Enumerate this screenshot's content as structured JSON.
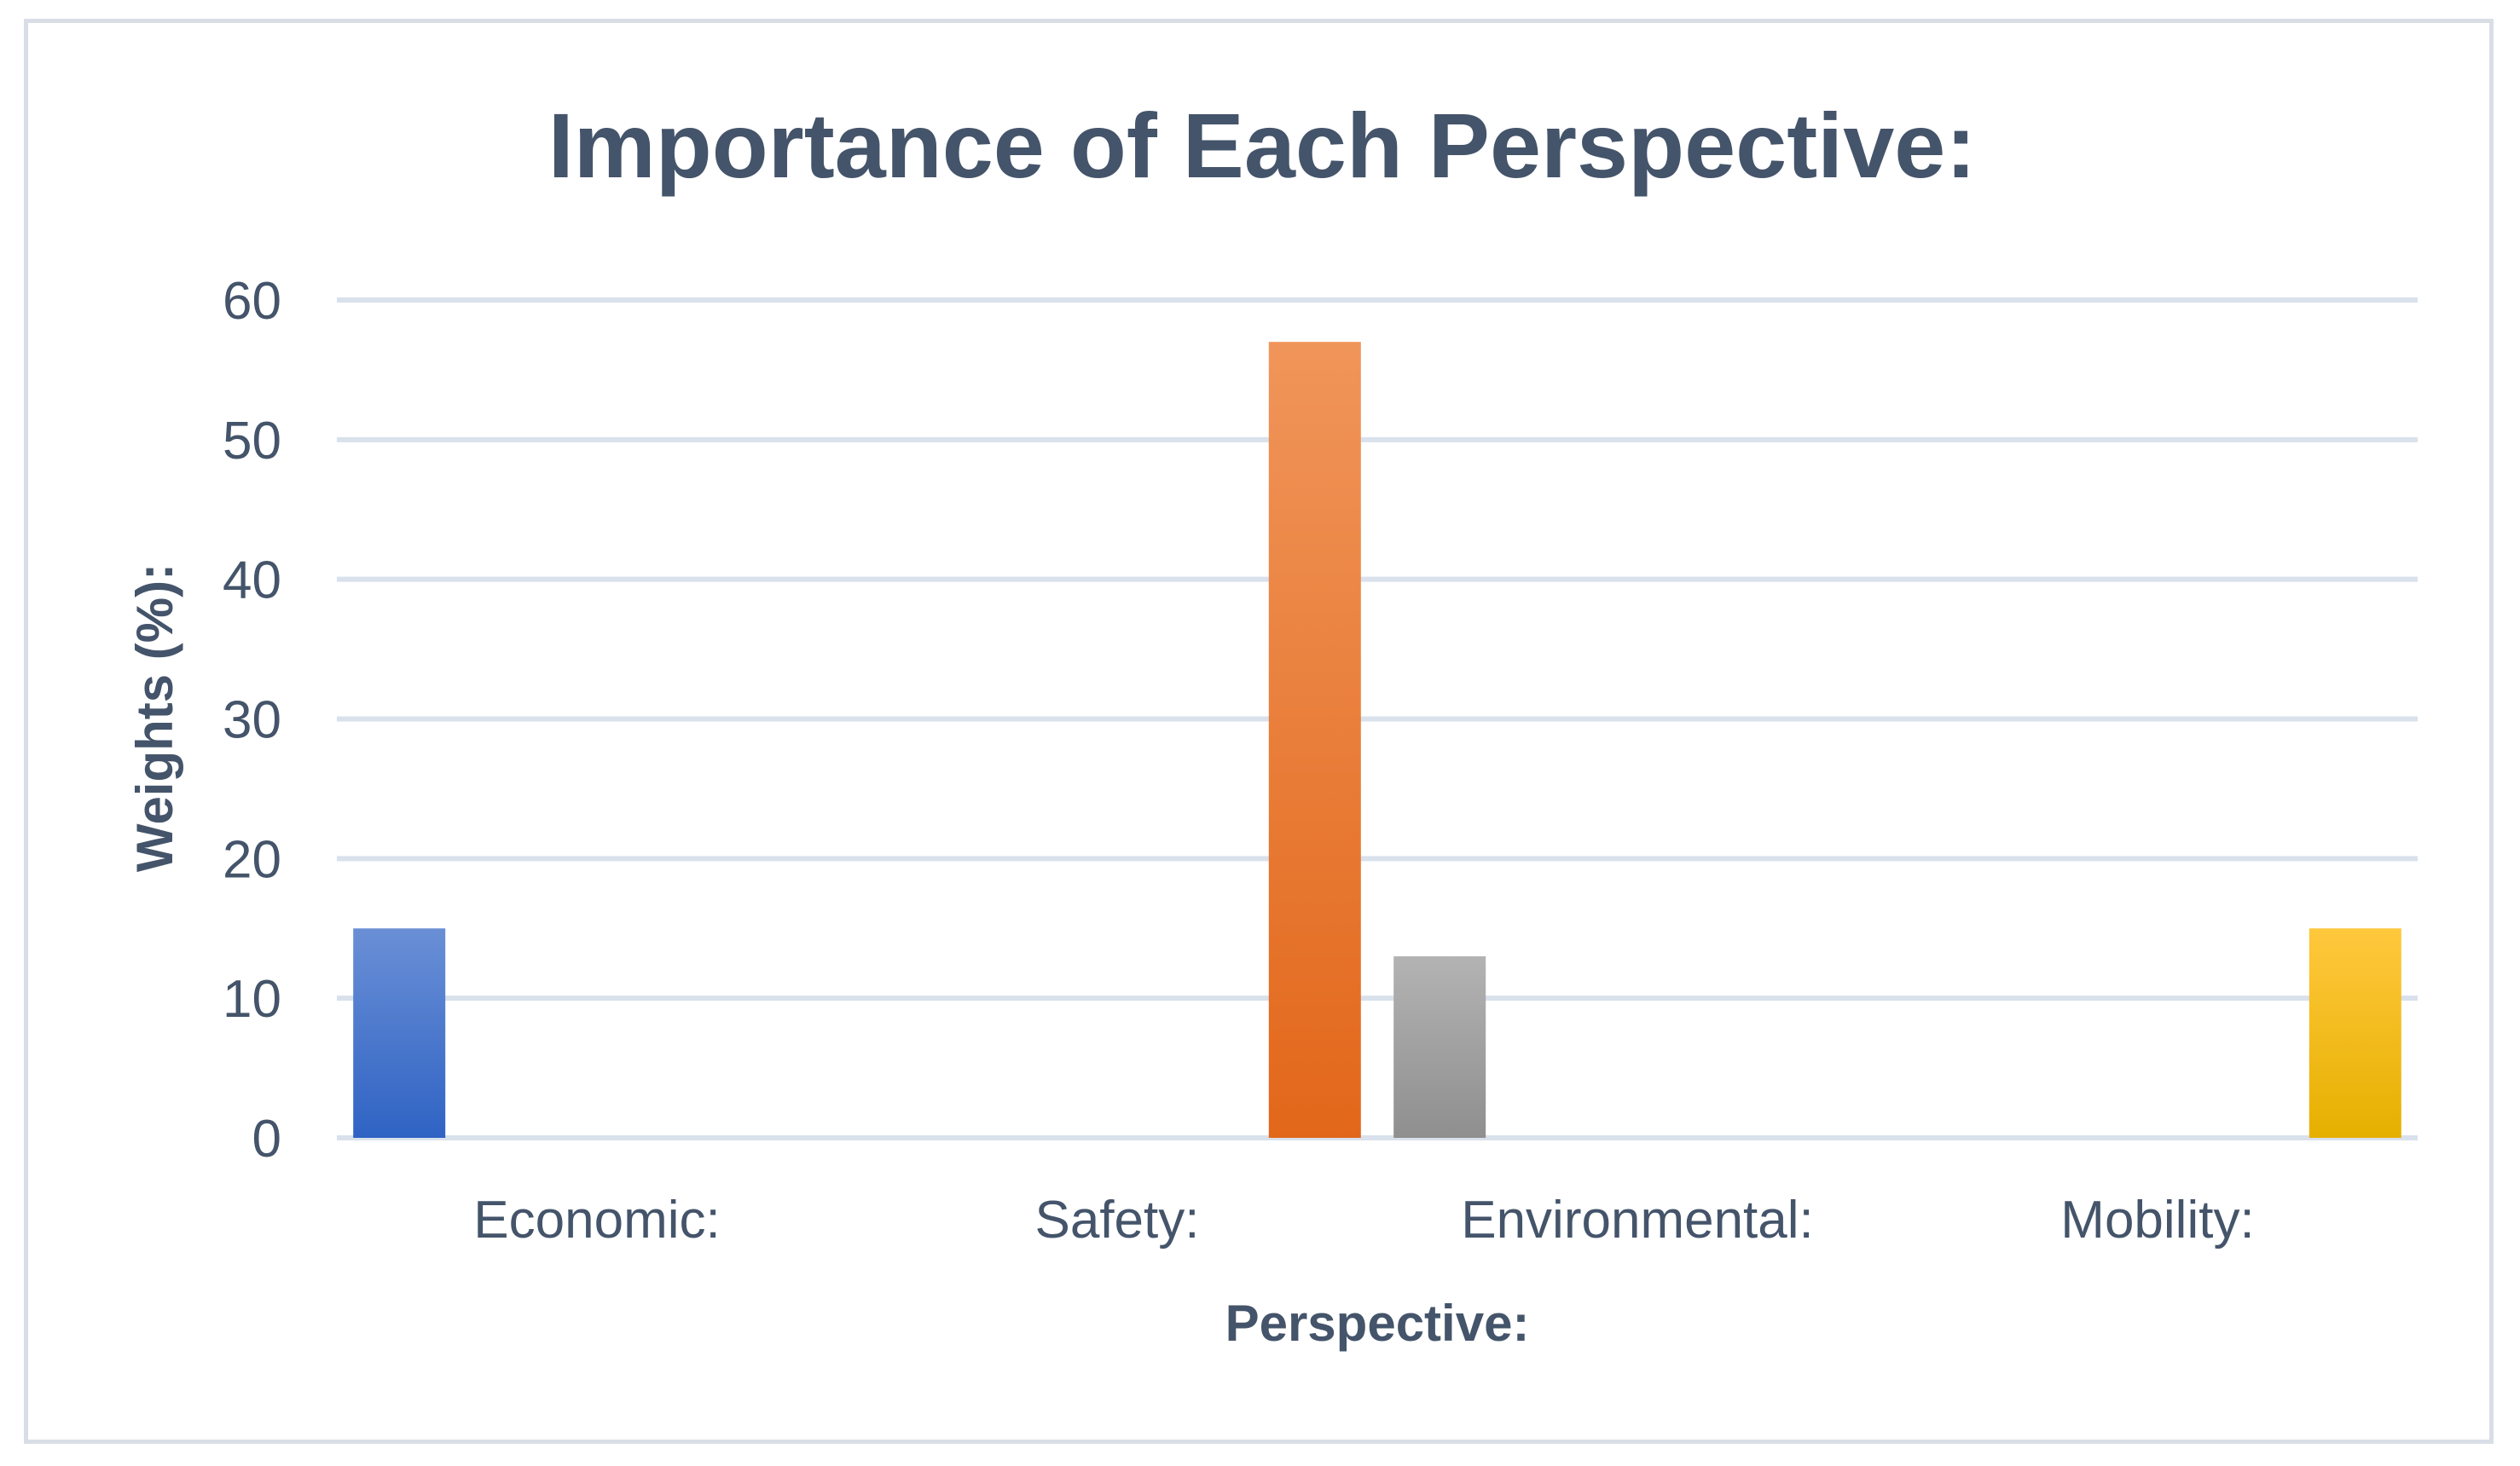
{
  "chart_data": {
    "type": "bar",
    "title": "Importance of Each Perspective:",
    "xlabel": "Perspective:",
    "ylabel": "Weights (%):",
    "categories": [
      "Economic:",
      "Safety:",
      "Environmental:",
      "Mobility:"
    ],
    "values": [
      15,
      57,
      13,
      15
    ],
    "ylim": [
      0,
      60
    ],
    "yticks": [
      "0",
      "10",
      "20",
      "30",
      "40",
      "50",
      "60"
    ],
    "grid": true,
    "legend": "none",
    "colors": [
      {
        "top": "#6a8fd6",
        "bottom": "#2f63c4"
      },
      {
        "top": "#f0955a",
        "bottom": "#e2671a"
      },
      {
        "top": "#b3b3b3",
        "bottom": "#8f8f8f"
      },
      {
        "top": "#ffc83d",
        "bottom": "#e6b000"
      }
    ],
    "text_color": "#44546a",
    "grid_color": "#d9e1ec"
  }
}
